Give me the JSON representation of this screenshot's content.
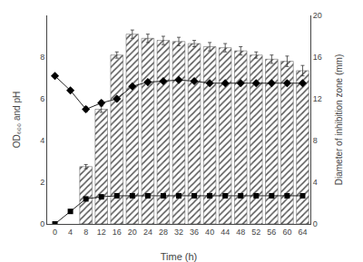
{
  "chart_data": {
    "type": "bar",
    "xlabel": "Time (h)",
    "ylabel": "OD₆₀₀ and pH",
    "y2label": "Diameter of inhibition zone (mm)",
    "x": [
      0,
      4,
      8,
      12,
      16,
      20,
      24,
      28,
      32,
      36,
      40,
      44,
      48,
      52,
      56,
      60,
      64
    ],
    "series": [
      {
        "type": "bar",
        "axis": "y2",
        "color": "#cccccc",
        "values": [
          null,
          null,
          5.5,
          11.0,
          16.2,
          18.2,
          17.8,
          17.6,
          17.5,
          17.3,
          17.0,
          16.9,
          16.6,
          16.2,
          15.8,
          15.6,
          14.7
        ],
        "errors": [
          null,
          null,
          0.2,
          0.3,
          0.3,
          0.4,
          0.4,
          0.4,
          0.4,
          0.3,
          0.4,
          0.4,
          0.4,
          0.3,
          0.4,
          0.5,
          0.5
        ]
      },
      {
        "type": "line",
        "color": "#222222",
        "marker": "diamond",
        "values": [
          7.1,
          6.4,
          5.5,
          5.8,
          6.0,
          6.6,
          6.8,
          6.85,
          6.9,
          6.85,
          6.75,
          6.75,
          6.75,
          6.75,
          6.75,
          6.75,
          6.75
        ],
        "errors": [
          0.05,
          0.08,
          0.12,
          0.12,
          0.12,
          0.08,
          0.08,
          0.06,
          0.06,
          0.06,
          0.06,
          0.06,
          0.06,
          0.06,
          0.06,
          0.06,
          0.06
        ]
      },
      {
        "type": "line",
        "color": "#222222",
        "marker": "square",
        "values": [
          0.0,
          0.6,
          1.2,
          1.3,
          1.35,
          1.35,
          1.35,
          1.35,
          1.35,
          1.35,
          1.35,
          1.35,
          1.35,
          1.35,
          1.35,
          1.35,
          1.35
        ],
        "errors": [
          0.0,
          0.05,
          0.06,
          0.06,
          0.05,
          0.05,
          0.05,
          0.05,
          0.05,
          0.05,
          0.05,
          0.05,
          0.05,
          0.05,
          0.05,
          0.05,
          0.05
        ]
      }
    ],
    "xlim": [
      -2,
      66
    ],
    "xticks": [
      0,
      4,
      8,
      12,
      16,
      20,
      24,
      28,
      32,
      36,
      40,
      44,
      48,
      52,
      56,
      60,
      64
    ],
    "ylim": [
      0,
      10
    ],
    "yticks": [
      0,
      2,
      4,
      6,
      8
    ],
    "y2lim": [
      0,
      20
    ],
    "y2ticks": [
      0,
      4,
      8,
      12,
      16,
      20
    ],
    "grid": false
  }
}
